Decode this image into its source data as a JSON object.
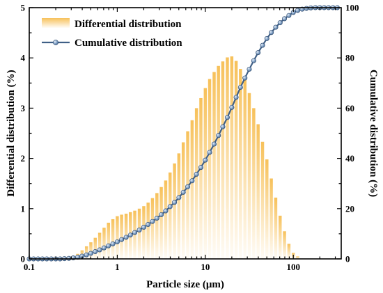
{
  "chart_data": {
    "type": "bar+line",
    "xlabel": "Particle size (μm)",
    "ylabel_left": "Differential distribution (%)",
    "ylabel_right": "Cumulative distribution (%)",
    "x_scale": "log",
    "xlim": [
      0.1,
      350
    ],
    "ylim_left": [
      0,
      5
    ],
    "ylim_right": [
      0,
      100
    ],
    "x_ticks": [
      0.1,
      1,
      10,
      100
    ],
    "x_tick_labels": [
      "0.1",
      "1",
      "10",
      "100"
    ],
    "y_left_ticks": [
      0,
      1,
      2,
      3,
      4,
      5
    ],
    "y_left_tick_labels": [
      "0",
      "1",
      "2",
      "3",
      "4",
      "5"
    ],
    "y_right_ticks": [
      0,
      20,
      40,
      60,
      80,
      100
    ],
    "y_right_tick_labels": [
      "0",
      "20",
      "40",
      "60",
      "80",
      "100"
    ],
    "legend": {
      "position": "top-left",
      "items": [
        "Differential distribution",
        "Cumulative distribution"
      ]
    },
    "colors": {
      "bars": "#f7c15a",
      "line": "#3f5f86",
      "marker": "#7f9fc4"
    },
    "x": [
      0.1,
      0.112,
      0.126,
      0.141,
      0.158,
      0.178,
      0.2,
      0.224,
      0.251,
      0.282,
      0.316,
      0.355,
      0.398,
      0.447,
      0.501,
      0.562,
      0.631,
      0.708,
      0.794,
      0.891,
      1.0,
      1.12,
      1.26,
      1.41,
      1.58,
      1.78,
      2.0,
      2.24,
      2.51,
      2.82,
      3.16,
      3.55,
      3.98,
      4.47,
      5.01,
      5.62,
      6.31,
      7.08,
      7.94,
      8.91,
      10.0,
      11.2,
      12.6,
      14.1,
      15.8,
      17.8,
      20.0,
      22.4,
      25.1,
      28.2,
      31.6,
      35.5,
      39.8,
      44.7,
      50.1,
      56.2,
      63.1,
      70.8,
      79.4,
      89.1,
      100,
      112,
      126,
      141,
      158,
      178,
      200,
      224,
      251,
      282,
      316
    ],
    "series": [
      {
        "name": "Differential distribution",
        "values": [
          0,
          0,
          0,
          0,
          0,
          0,
          0,
          0,
          0,
          0.02,
          0.05,
          0.1,
          0.17,
          0.25,
          0.33,
          0.42,
          0.52,
          0.62,
          0.72,
          0.79,
          0.85,
          0.88,
          0.9,
          0.93,
          0.96,
          1.0,
          1.05,
          1.12,
          1.21,
          1.31,
          1.43,
          1.56,
          1.72,
          1.9,
          2.1,
          2.32,
          2.54,
          2.76,
          3.0,
          3.2,
          3.4,
          3.58,
          3.72,
          3.84,
          3.93,
          4.01,
          4.03,
          3.94,
          3.78,
          3.56,
          3.3,
          3.0,
          2.68,
          2.33,
          1.98,
          1.6,
          1.22,
          0.86,
          0.55,
          0.3,
          0.12,
          0.05,
          0,
          0,
          0,
          0,
          0,
          0,
          0,
          0,
          0
        ]
      },
      {
        "name": "Cumulative distribution",
        "values": [
          0,
          0,
          0,
          0,
          0,
          0,
          0,
          0,
          0.1,
          0.2,
          0.4,
          0.7,
          1.1,
          1.6,
          2.2,
          2.9,
          3.6,
          4.4,
          5.2,
          6.0,
          6.8,
          7.7,
          8.6,
          9.5,
          10.5,
          11.5,
          12.6,
          13.7,
          14.9,
          16.2,
          17.6,
          19.1,
          20.8,
          22.5,
          24.4,
          26.5,
          28.7,
          31.1,
          33.7,
          36.4,
          39.3,
          42.4,
          45.7,
          49.1,
          52.6,
          56.3,
          60.3,
          64.3,
          68.3,
          72.0,
          75.5,
          78.9,
          82.1,
          85.0,
          87.7,
          90.1,
          92.2,
          94.0,
          95.6,
          96.9,
          98.1,
          98.9,
          99.4,
          99.7,
          99.9,
          100,
          100,
          100,
          100,
          100,
          100
        ]
      }
    ]
  }
}
